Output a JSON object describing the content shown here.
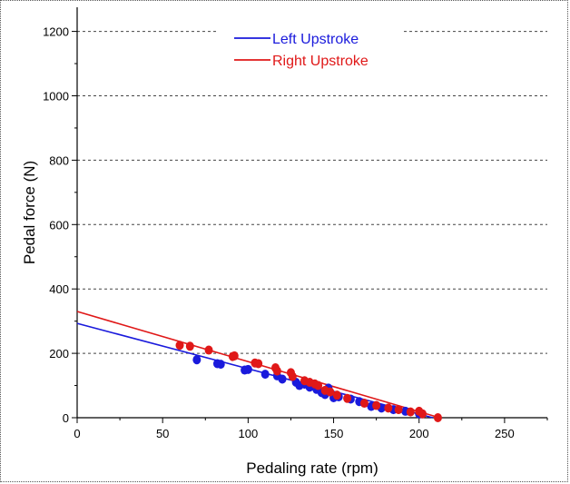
{
  "chart_data": {
    "type": "scatter",
    "title": "",
    "xlabel": "Pedaling rate (rpm)",
    "ylabel": "Pedal force (N)",
    "xlim": [
      0,
      275
    ],
    "ylim": [
      0,
      1275
    ],
    "x_ticks": [
      0,
      50,
      100,
      150,
      200,
      250
    ],
    "y_ticks": [
      0,
      200,
      400,
      600,
      800,
      1000,
      1200
    ],
    "x_tick_labels": [
      "0",
      "50",
      "100",
      "150",
      "200",
      "250"
    ],
    "y_tick_labels": [
      "0",
      "200",
      "400",
      "600",
      "800",
      "1000",
      "1200"
    ],
    "grid": "horizontal dashed",
    "legend_position": "top-center",
    "series": [
      {
        "name": "Left Upstroke",
        "color": "#1a1adc",
        "fit_line": {
          "x": [
            0,
            208
          ],
          "y": [
            293,
            0
          ]
        },
        "points": [
          {
            "x": 70,
            "y": 180
          },
          {
            "x": 82,
            "y": 168
          },
          {
            "x": 84,
            "y": 166
          },
          {
            "x": 98,
            "y": 148
          },
          {
            "x": 100,
            "y": 150
          },
          {
            "x": 110,
            "y": 135
          },
          {
            "x": 117,
            "y": 130
          },
          {
            "x": 120,
            "y": 120
          },
          {
            "x": 128,
            "y": 110
          },
          {
            "x": 130,
            "y": 100
          },
          {
            "x": 133,
            "y": 104
          },
          {
            "x": 136,
            "y": 95
          },
          {
            "x": 140,
            "y": 88
          },
          {
            "x": 143,
            "y": 78
          },
          {
            "x": 145,
            "y": 72
          },
          {
            "x": 147,
            "y": 92
          },
          {
            "x": 150,
            "y": 62
          },
          {
            "x": 153,
            "y": 65
          },
          {
            "x": 160,
            "y": 58
          },
          {
            "x": 165,
            "y": 50
          },
          {
            "x": 172,
            "y": 35
          },
          {
            "x": 178,
            "y": 30
          },
          {
            "x": 185,
            "y": 25
          },
          {
            "x": 192,
            "y": 20
          },
          {
            "x": 200,
            "y": 12
          }
        ]
      },
      {
        "name": "Right Upstroke",
        "color": "#e01818",
        "fit_line": {
          "x": [
            0,
            212
          ],
          "y": [
            330,
            0
          ]
        },
        "points": [
          {
            "x": 60,
            "y": 225
          },
          {
            "x": 66,
            "y": 222
          },
          {
            "x": 77,
            "y": 210
          },
          {
            "x": 91,
            "y": 190
          },
          {
            "x": 92,
            "y": 192
          },
          {
            "x": 104,
            "y": 170
          },
          {
            "x": 106,
            "y": 168
          },
          {
            "x": 116,
            "y": 155
          },
          {
            "x": 117,
            "y": 145
          },
          {
            "x": 125,
            "y": 140
          },
          {
            "x": 126,
            "y": 128
          },
          {
            "x": 133,
            "y": 115
          },
          {
            "x": 136,
            "y": 110
          },
          {
            "x": 139,
            "y": 105
          },
          {
            "x": 141,
            "y": 100
          },
          {
            "x": 145,
            "y": 85
          },
          {
            "x": 148,
            "y": 80
          },
          {
            "x": 152,
            "y": 70
          },
          {
            "x": 158,
            "y": 60
          },
          {
            "x": 168,
            "y": 45
          },
          {
            "x": 175,
            "y": 38
          },
          {
            "x": 182,
            "y": 30
          },
          {
            "x": 188,
            "y": 25
          },
          {
            "x": 195,
            "y": 18
          },
          {
            "x": 200,
            "y": 20
          },
          {
            "x": 202,
            "y": 12
          },
          {
            "x": 211,
            "y": 0
          }
        ]
      }
    ]
  }
}
